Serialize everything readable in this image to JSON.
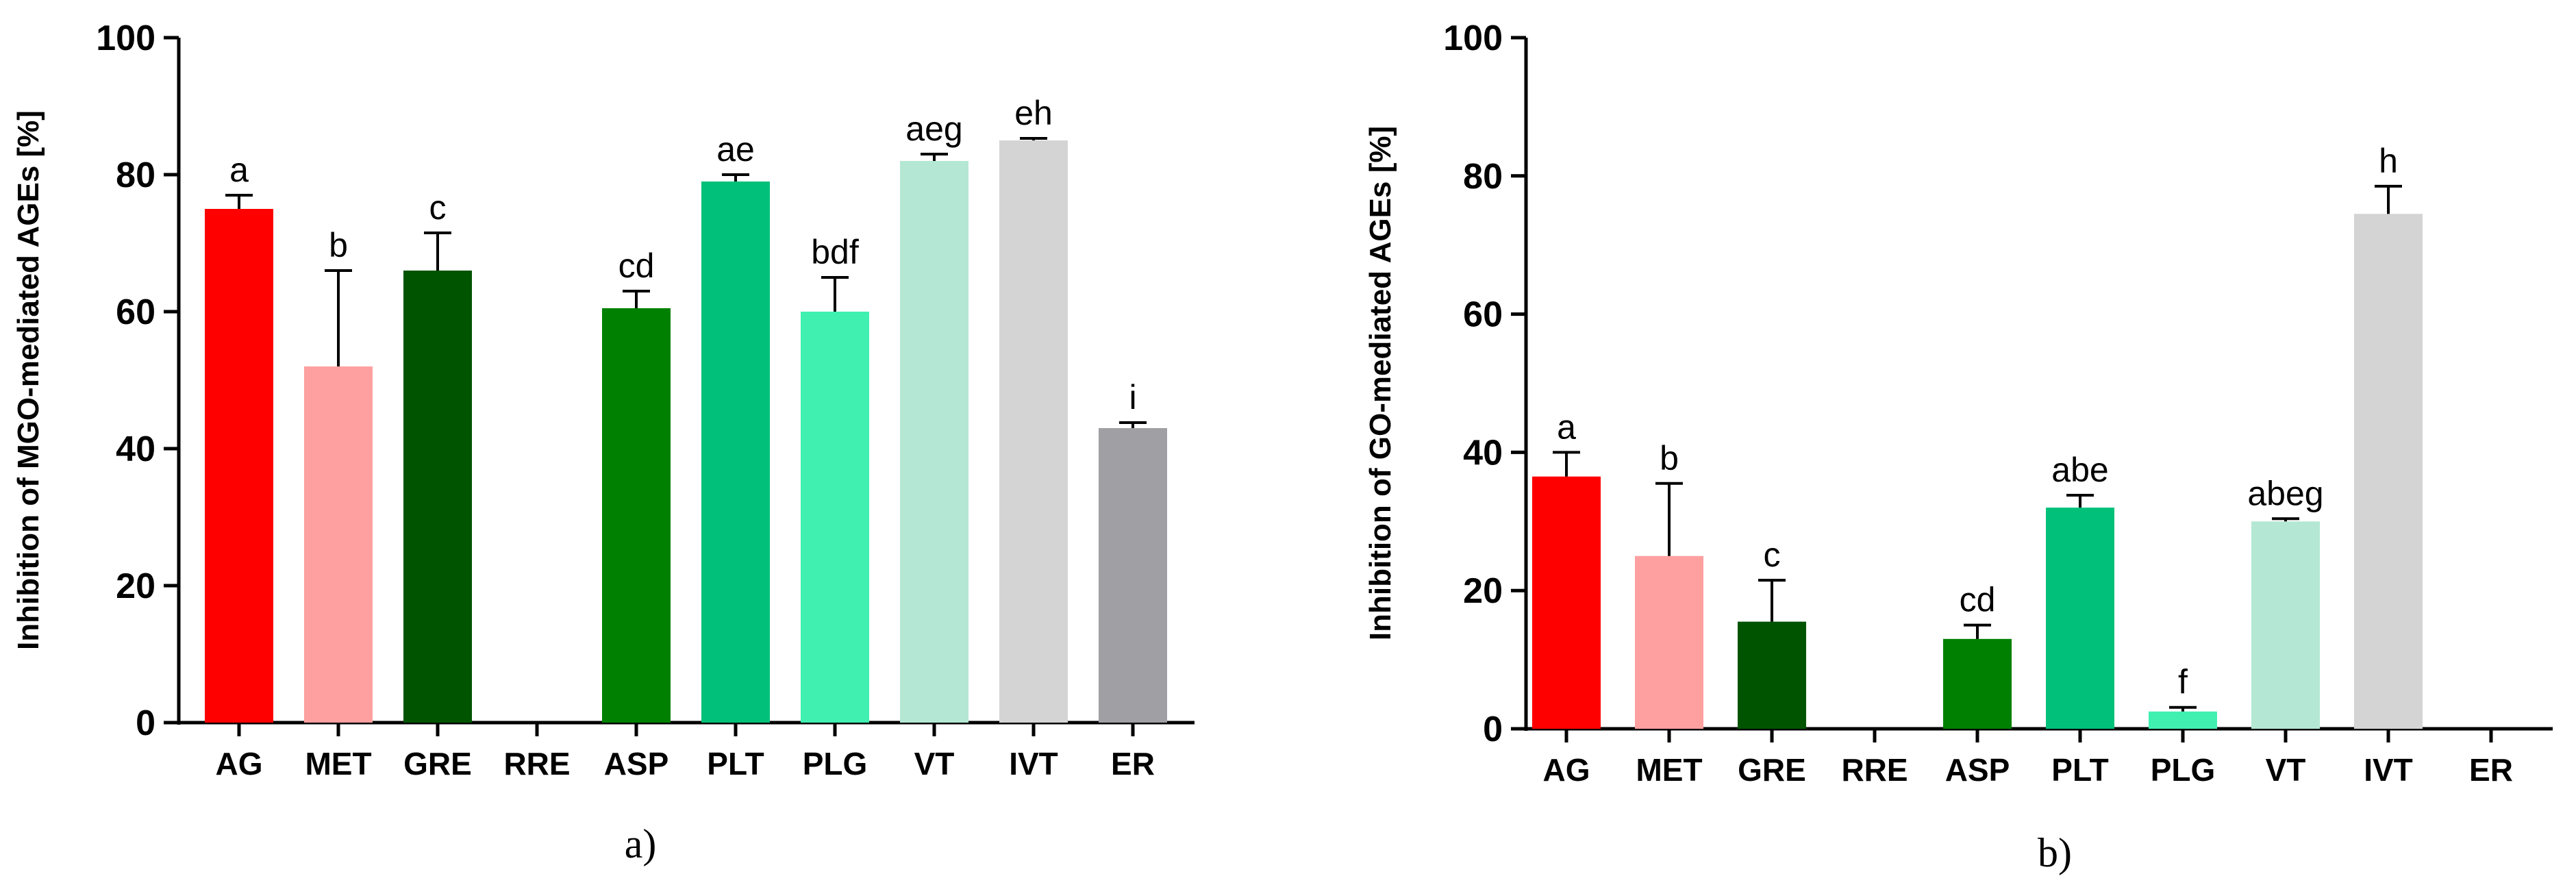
{
  "chart_data": [
    {
      "panel": "a)",
      "type": "bar",
      "ylabel": "Inhibition of MGO-mediated AGEs [%]",
      "ylim": [
        0,
        100
      ],
      "yticks": [
        0,
        20,
        40,
        60,
        80,
        100
      ],
      "categories": [
        "AG",
        "MET",
        "GRE",
        "RRE",
        "ASP",
        "PLT",
        "PLG",
        "VT",
        "IVT",
        "ER"
      ],
      "values": [
        75,
        52,
        66,
        0,
        60.5,
        79,
        60,
        82,
        85,
        43
      ],
      "errors": [
        2,
        14,
        5.5,
        0,
        2.5,
        1,
        5,
        1,
        0.3,
        0.8
      ],
      "sig_labels": [
        "a",
        "b",
        "c",
        "",
        "cd",
        "ae",
        "bdf",
        "aeg",
        "eh",
        "i"
      ],
      "colors": [
        "#ff0000",
        "#ffa0a0",
        "#005400",
        "#ffffff",
        "#008000",
        "#00c07a",
        "#40f0b0",
        "#b4e8d4",
        "#d4d4d4",
        "#a0a0a4"
      ]
    },
    {
      "panel": "b)",
      "type": "bar",
      "ylabel": "Inhibition of GO-mediated AGEs [%]",
      "ylim": [
        0,
        100
      ],
      "yticks": [
        0,
        20,
        40,
        60,
        80,
        100
      ],
      "categories": [
        "AG",
        "MET",
        "GRE",
        "RRE",
        "ASP",
        "PLT",
        "PLG",
        "VT",
        "IVT",
        "ER"
      ],
      "values": [
        36.5,
        25,
        15.5,
        0,
        13,
        32,
        2.5,
        30,
        74.5,
        0
      ],
      "errors": [
        3.5,
        10.5,
        6,
        0,
        2,
        1.8,
        0.6,
        0.4,
        4,
        0
      ],
      "sig_labels": [
        "a",
        "b",
        "c",
        "",
        "cd",
        "abe",
        "f",
        "abeg",
        "h",
        ""
      ],
      "colors": [
        "#ff0000",
        "#ffa0a0",
        "#005400",
        "#ffffff",
        "#008000",
        "#00c07a",
        "#40f0b0",
        "#b4e8d4",
        "#d4d4d4",
        "#a0a0a4"
      ]
    }
  ]
}
